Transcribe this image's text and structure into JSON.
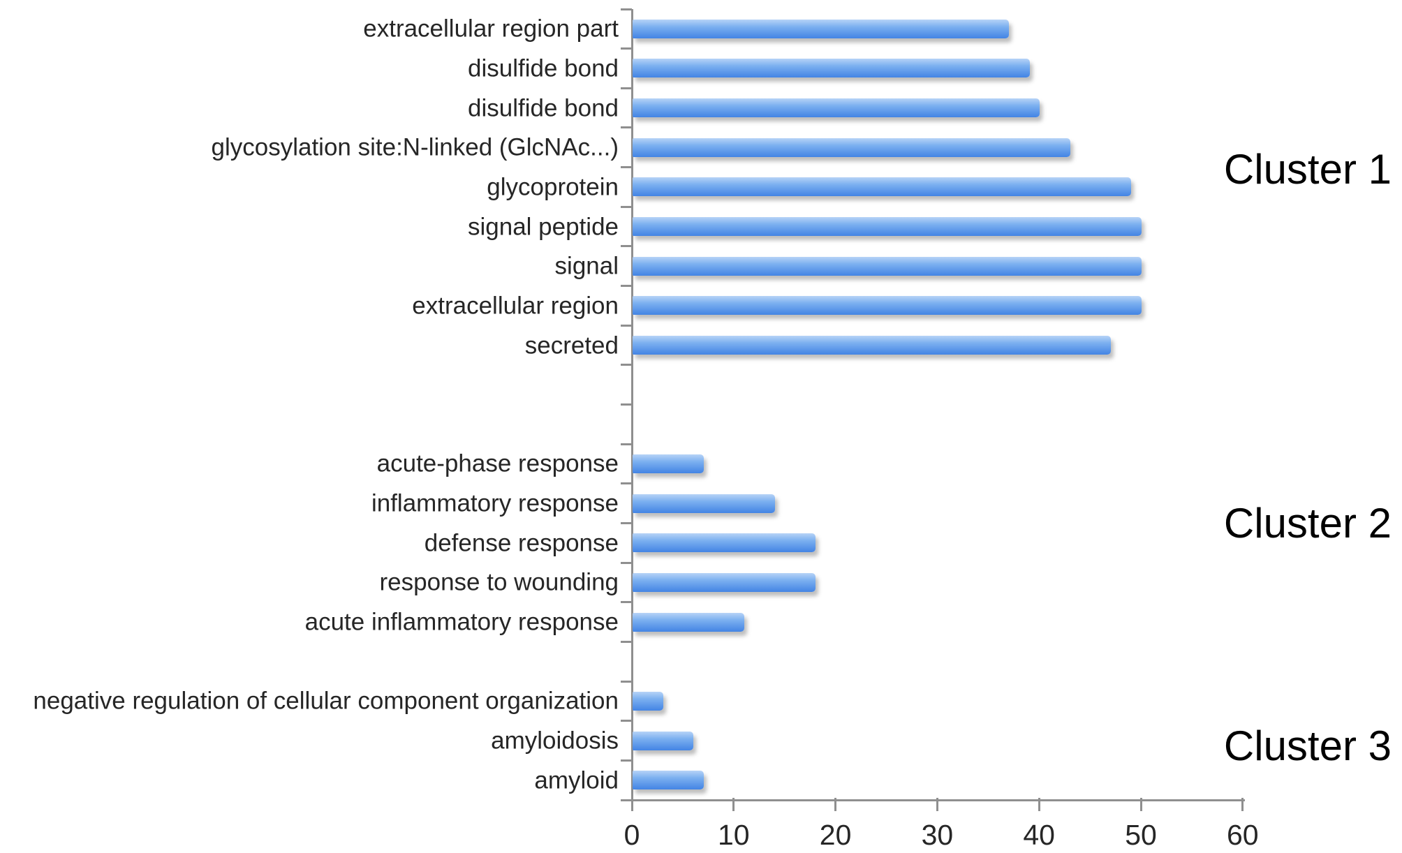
{
  "figure": {
    "background": "#ffffff",
    "title": ""
  },
  "chart_data": {
    "type": "bar",
    "orientation": "horizontal",
    "title": "",
    "xlabel": "",
    "ylabel": "",
    "xlim": [
      0,
      60
    ],
    "x_ticks": [
      0,
      10,
      20,
      30,
      40,
      50,
      60
    ],
    "grid": false,
    "legend": false,
    "axis_color": "#8f8f8f",
    "text_color": "#262626",
    "bar_color": "#5b9bf0",
    "bar_gradient": [
      "#b7d3f7",
      "#7cb0f0",
      "#4384e4"
    ],
    "total_rows": 20,
    "clusters": [
      {
        "name": "Cluster 1",
        "start_row": 0,
        "items": [
          {
            "label": "extracellular region part",
            "value": 37
          },
          {
            "label": "disulfide bond",
            "value": 39
          },
          {
            "label": "disulfide bond",
            "value": 40
          },
          {
            "label": "glycosylation site:N-linked (GlcNAc...)",
            "value": 43
          },
          {
            "label": "glycoprotein",
            "value": 49
          },
          {
            "label": "signal peptide",
            "value": 50
          },
          {
            "label": "signal",
            "value": 50
          },
          {
            "label": "extracellular region",
            "value": 50
          },
          {
            "label": "secreted",
            "value": 47
          }
        ]
      },
      {
        "name": "Cluster 2",
        "start_row": 11,
        "items": [
          {
            "label": "acute-phase response",
            "value": 7
          },
          {
            "label": "inflammatory response",
            "value": 14
          },
          {
            "label": "defense response",
            "value": 18
          },
          {
            "label": "response to wounding",
            "value": 18
          },
          {
            "label": "acute inflammatory response",
            "value": 11
          }
        ]
      },
      {
        "name": "Cluster 3",
        "start_row": 17,
        "items": [
          {
            "label": "negative regulation of cellular component organization",
            "value": 3
          },
          {
            "label": "amyloidosis",
            "value": 6
          },
          {
            "label": "amyloid",
            "value": 7
          }
        ]
      }
    ]
  }
}
